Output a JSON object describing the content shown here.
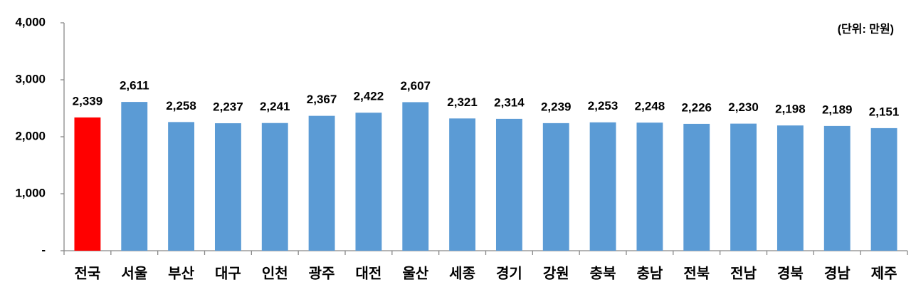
{
  "chart_data": {
    "type": "bar",
    "annotation": "(단위: 만원)",
    "categories": [
      "전국",
      "서울",
      "부산",
      "대구",
      "인천",
      "광주",
      "대전",
      "울산",
      "세종",
      "경기",
      "강원",
      "충북",
      "충남",
      "전북",
      "전남",
      "경북",
      "경남",
      "제주"
    ],
    "values": [
      2339,
      2611,
      2258,
      2237,
      2241,
      2367,
      2422,
      2607,
      2321,
      2314,
      2239,
      2253,
      2248,
      2226,
      2230,
      2198,
      2189,
      2151
    ],
    "value_labels": [
      "2,339",
      "2,611",
      "2,258",
      "2,237",
      "2,241",
      "2,367",
      "2,422",
      "2,607",
      "2,321",
      "2,314",
      "2,239",
      "2,253",
      "2,248",
      "2,226",
      "2,230",
      "2,198",
      "2,189",
      "2,151"
    ],
    "colors": [
      "#ff0000",
      "#5b9bd5",
      "#5b9bd5",
      "#5b9bd5",
      "#5b9bd5",
      "#5b9bd5",
      "#5b9bd5",
      "#5b9bd5",
      "#5b9bd5",
      "#5b9bd5",
      "#5b9bd5",
      "#5b9bd5",
      "#5b9bd5",
      "#5b9bd5",
      "#5b9bd5",
      "#5b9bd5",
      "#5b9bd5",
      "#5b9bd5"
    ],
    "ylim": [
      0,
      4000
    ],
    "yticks": [
      {
        "value": 0,
        "label": "-"
      },
      {
        "value": 1000,
        "label": "1,000"
      },
      {
        "value": 2000,
        "label": "2,000"
      },
      {
        "value": 3000,
        "label": "3,000"
      },
      {
        "value": 4000,
        "label": "4,000"
      }
    ],
    "grid": false
  }
}
